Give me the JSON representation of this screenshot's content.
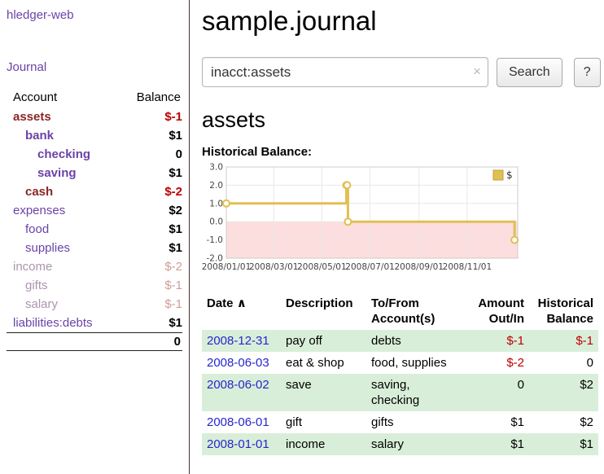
{
  "app": {
    "title": "hledger-web"
  },
  "sidebar": {
    "journal_link": "Journal",
    "accounts": {
      "col_account": "Account",
      "col_balance": "Balance",
      "rows": [
        {
          "name": "assets",
          "balance": "$-1",
          "indent": 1,
          "bold": true,
          "name_style": "sel",
          "balance_style": "neg"
        },
        {
          "name": "bank",
          "balance": "$1",
          "indent": 2,
          "bold": true,
          "name_style": "link",
          "balance_style": "pos"
        },
        {
          "name": "checking",
          "balance": "0",
          "indent": 3,
          "bold": true,
          "name_style": "link",
          "balance_style": "pos"
        },
        {
          "name": "saving",
          "balance": "$1",
          "indent": 3,
          "bold": true,
          "name_style": "link",
          "balance_style": "pos"
        },
        {
          "name": "cash",
          "balance": "$-2",
          "indent": 2,
          "bold": true,
          "name_style": "sel",
          "balance_style": "neg"
        },
        {
          "name": "expenses",
          "balance": "$2",
          "indent": 1,
          "bold": false,
          "name_style": "link",
          "balance_style": "pos"
        },
        {
          "name": "food",
          "balance": "$1",
          "indent": 2,
          "bold": false,
          "name_style": "link",
          "balance_style": "pos"
        },
        {
          "name": "supplies",
          "balance": "$1",
          "indent": 2,
          "bold": false,
          "name_style": "link",
          "balance_style": "pos"
        },
        {
          "name": "income",
          "balance": "$-2",
          "indent": 1,
          "bold": false,
          "name_style": "muted",
          "balance_style": "negmuted"
        },
        {
          "name": "gifts",
          "balance": "$-1",
          "indent": 2,
          "bold": false,
          "name_style": "muted",
          "balance_style": "negmuted"
        },
        {
          "name": "salary",
          "balance": "$-1",
          "indent": 2,
          "bold": false,
          "name_style": "muted",
          "balance_style": "negmuted"
        },
        {
          "name": "liabilities:debts",
          "balance": "$1",
          "indent": 1,
          "bold": false,
          "name_style": "link",
          "balance_style": "pos"
        }
      ],
      "total": "0"
    }
  },
  "main": {
    "title": "sample.journal",
    "search": {
      "value": "inacct:assets",
      "clear_icon": "×",
      "search_button": "Search",
      "help_button": "?"
    },
    "account_heading": "assets",
    "chart_label": "Historical Balance:"
  },
  "chart_data": {
    "type": "line",
    "step": true,
    "title": "Historical Balance",
    "legend": [
      {
        "label": "$",
        "color": "#e2bf54"
      }
    ],
    "ylim": [
      -2,
      3
    ],
    "yticks": [
      "3.0",
      "2.0",
      "1.0",
      "0.0",
      "-1.0",
      "-2.0"
    ],
    "xticks": [
      {
        "date": "2008-01-01",
        "label": "2008/01/01"
      },
      {
        "date": "2008-03-01",
        "label": "2008/03/01"
      },
      {
        "date": "2008-05-01",
        "label": "2008/05/01"
      },
      {
        "date": "2008-07-01",
        "label": "2008/07/01"
      },
      {
        "date": "2008-09-01",
        "label": "2008/09/01"
      },
      {
        "date": "2008-11-01",
        "label": "2008/11/01"
      }
    ],
    "series": [
      {
        "name": "$",
        "points": [
          {
            "date": "2008-01-01",
            "value": 1
          },
          {
            "date": "2008-06-01",
            "value": 2
          },
          {
            "date": "2008-06-02",
            "value": 2
          },
          {
            "date": "2008-06-03",
            "value": 0
          },
          {
            "date": "2008-12-31",
            "value": -1
          }
        ]
      }
    ],
    "colors": {
      "line": "#e2bf54",
      "line_edge": "#bfa033",
      "marker_fill": "#fffdf5",
      "negative_region": "#fcdede",
      "grid": "#e8e8e8",
      "border": "#cccccc"
    }
  },
  "register": {
    "headers": {
      "date": "Date",
      "sort_icon": "∧",
      "description": "Description",
      "accounts": "To/From Account(s)",
      "amount": "Amount Out/In",
      "balance": "Historical Balance"
    },
    "rows": [
      {
        "date": "2008-12-31",
        "description": "pay off",
        "accounts": "debts",
        "amount": "$-1",
        "amount_negative": true,
        "balance": "$-1",
        "balance_negative": true,
        "shaded": true
      },
      {
        "date": "2008-06-03",
        "description": "eat & shop",
        "accounts": "food, supplies",
        "amount": "$-2",
        "amount_negative": true,
        "balance": "0",
        "balance_negative": false,
        "shaded": false
      },
      {
        "date": "2008-06-02",
        "description": "save",
        "accounts": "saving, checking",
        "amount": "0",
        "amount_negative": false,
        "balance": "$2",
        "balance_negative": false,
        "shaded": true
      },
      {
        "date": "2008-06-01",
        "description": "gift",
        "accounts": "gifts",
        "amount": "$1",
        "amount_negative": false,
        "balance": "$2",
        "balance_negative": false,
        "shaded": false
      },
      {
        "date": "2008-01-01",
        "description": "income",
        "accounts": "salary",
        "amount": "$1",
        "amount_negative": false,
        "balance": "$1",
        "balance_negative": false,
        "shaded": true
      }
    ]
  },
  "colors": {
    "link_purple": "#6a43a8",
    "selected_maroon": "#8c2626",
    "muted_purple": "#ab94ad",
    "negative_red": "#bb0000",
    "muted_red": "#cf9d96",
    "date_link_blue": "#2626cc",
    "row_shade_green": "#d9eed9",
    "sidebar_divider": "#532a2d"
  }
}
